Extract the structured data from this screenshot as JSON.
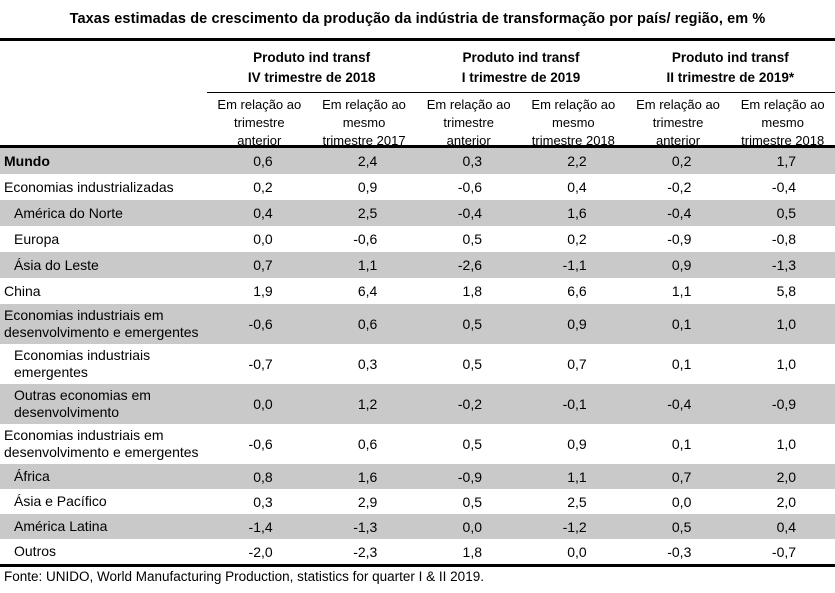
{
  "title": "Taxas estimadas de crescimento da produção da indústria de transformação por país/ região, em %",
  "header": {
    "groups": [
      {
        "line1": "Produto ind transf",
        "line2": "IV trimestre de 2018"
      },
      {
        "line1": "Produto ind transf",
        "line2": "I trimestre de 2019"
      },
      {
        "line1": "Produto ind transf",
        "line2": "II trimestre de 2019*"
      }
    ],
    "subheaders": [
      "Em relação ao trimestre anterior",
      "Em relação ao mesmo trimestre 2017",
      "Em relação ao trimestre anterior",
      "Em relação ao mesmo trimestre 2018",
      "Em relação ao trimestre anterior",
      "Em relação ao mesmo trimestre 2018"
    ]
  },
  "rows": [
    {
      "label": "Mundo",
      "indent": 0,
      "bold": true,
      "shaded": true,
      "values": [
        "0,6",
        "2,4",
        "0,3",
        "2,2",
        "0,2",
        "1,7"
      ]
    },
    {
      "label": "Economias industrializadas",
      "indent": 0,
      "bold": false,
      "shaded": false,
      "values": [
        "0,2",
        "0,9",
        "-0,6",
        "0,4",
        "-0,2",
        "-0,4"
      ]
    },
    {
      "label": "América do Norte",
      "indent": 1,
      "bold": false,
      "shaded": true,
      "values": [
        "0,4",
        "2,5",
        "-0,4",
        "1,6",
        "-0,4",
        "0,5"
      ]
    },
    {
      "label": "Europa",
      "indent": 1,
      "bold": false,
      "shaded": false,
      "values": [
        "0,0",
        "-0,6",
        "0,5",
        "0,2",
        "-0,9",
        "-0,8"
      ]
    },
    {
      "label": "Ásia do Leste",
      "indent": 1,
      "bold": false,
      "shaded": true,
      "values": [
        "0,7",
        "1,1",
        "-2,6",
        "-1,1",
        "0,9",
        "-1,3"
      ]
    },
    {
      "label": "China",
      "indent": 0,
      "bold": false,
      "shaded": false,
      "values": [
        "1,9",
        "6,4",
        "1,8",
        "6,6",
        "1,1",
        "5,8"
      ]
    },
    {
      "label": "Economias industriais em desenvolvimento e emergentes",
      "indent": 0,
      "bold": false,
      "shaded": true,
      "values": [
        "-0,6",
        "0,6",
        "0,5",
        "0,9",
        "0,1",
        "1,0"
      ]
    },
    {
      "label": "Economias industriais emergentes",
      "indent": 1,
      "bold": false,
      "shaded": false,
      "values": [
        "-0,7",
        "0,3",
        "0,5",
        "0,7",
        "0,1",
        "1,0"
      ]
    },
    {
      "label": "Outras economias em desenvolvimento",
      "indent": 1,
      "bold": false,
      "shaded": true,
      "values": [
        "0,0",
        "1,2",
        "-0,2",
        "-0,1",
        "-0,4",
        "-0,9"
      ]
    },
    {
      "label": "Economias industriais em desenvolvimento e emergentes",
      "indent": 0,
      "bold": false,
      "shaded": false,
      "values": [
        "-0,6",
        "0,6",
        "0,5",
        "0,9",
        "0,1",
        "1,0"
      ]
    },
    {
      "label": "África",
      "indent": 1,
      "bold": false,
      "shaded": true,
      "values": [
        "0,8",
        "1,6",
        "-0,9",
        "1,1",
        "0,7",
        "2,0"
      ]
    },
    {
      "label": "Ásia e Pacífico",
      "indent": 1,
      "bold": false,
      "shaded": false,
      "values": [
        "0,3",
        "2,9",
        "0,5",
        "2,5",
        "0,0",
        "2,0"
      ]
    },
    {
      "label": "América Latina",
      "indent": 1,
      "bold": false,
      "shaded": true,
      "values": [
        "-1,4",
        "-1,3",
        "0,0",
        "-1,2",
        "0,5",
        "0,4"
      ]
    },
    {
      "label": "Outros",
      "indent": 1,
      "bold": false,
      "shaded": false,
      "values": [
        "-2,0",
        "-2,3",
        "1,8",
        "0,0",
        "-0,3",
        "-0,7"
      ]
    }
  ],
  "footer": "Fonte: UNIDO, World Manufacturing Production, statistics for quarter I & II 2019.",
  "colors": {
    "row_shade": "#c9c9c9",
    "border": "#000000",
    "background": "#ffffff",
    "text": "#000000"
  }
}
